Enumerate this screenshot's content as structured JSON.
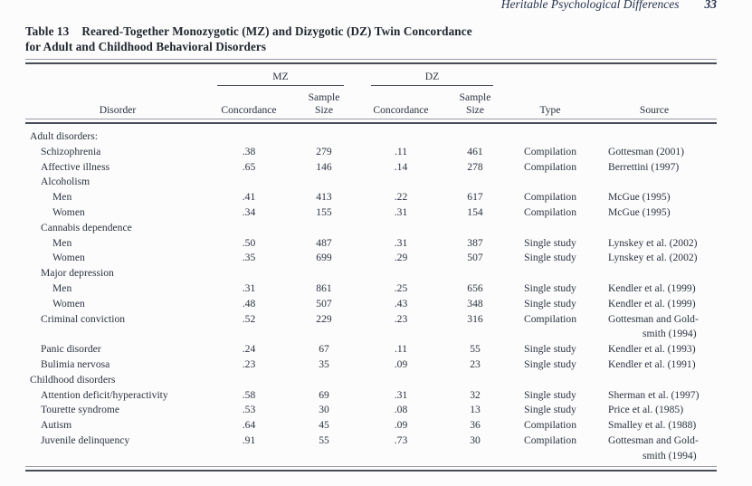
{
  "page": {
    "running_head": "Heritable Psychological Differences",
    "page_number": "33"
  },
  "table": {
    "label": "Table 13",
    "title_line1": "Reared-Together Monozygotic (MZ) and Dizygotic (DZ) Twin Concordance",
    "title_line2": "for Adult and Childhood Behavioral Disorders",
    "group_headers": {
      "mz": "MZ",
      "dz": "DZ"
    },
    "headers": {
      "disorder": "Disorder",
      "concordance_mz": "Concordance",
      "sample_line1_mz": "Sample",
      "sample_line2_mz": "Size",
      "concordance_dz": "Concordance",
      "sample_line1_dz": "Sample",
      "sample_line2_dz": "Size",
      "type": "Type",
      "source": "Source"
    },
    "rows": [
      {
        "label": "Adult disorders:",
        "indent": 0,
        "mz_concordance": "",
        "mz_sample": "",
        "dz_concordance": "",
        "dz_sample": "",
        "type": "",
        "source_lines": []
      },
      {
        "label": "Schizophrenia",
        "indent": 1,
        "mz_concordance": ".38",
        "mz_sample": "279",
        "dz_concordance": ".11",
        "dz_sample": "461",
        "type": "Compilation",
        "source_lines": [
          "Gottesman (2001)"
        ]
      },
      {
        "label": "Affective illness",
        "indent": 1,
        "mz_concordance": ".65",
        "mz_sample": "146",
        "dz_concordance": ".14",
        "dz_sample": "278",
        "type": "Compilation",
        "source_lines": [
          "Berrettini (1997)"
        ]
      },
      {
        "label": "Alcoholism",
        "indent": 1,
        "mz_concordance": "",
        "mz_sample": "",
        "dz_concordance": "",
        "dz_sample": "",
        "type": "",
        "source_lines": []
      },
      {
        "label": "Men",
        "indent": 2,
        "mz_concordance": ".41",
        "mz_sample": "413",
        "dz_concordance": ".22",
        "dz_sample": "617",
        "type": "Compilation",
        "source_lines": [
          "McGue (1995)"
        ]
      },
      {
        "label": "Women",
        "indent": 2,
        "mz_concordance": ".34",
        "mz_sample": "155",
        "dz_concordance": ".31",
        "dz_sample": "154",
        "type": "Compilation",
        "source_lines": [
          "McGue (1995)"
        ]
      },
      {
        "label": "Cannabis dependence",
        "indent": 1,
        "mz_concordance": "",
        "mz_sample": "",
        "dz_concordance": "",
        "dz_sample": "",
        "type": "",
        "source_lines": []
      },
      {
        "label": "Men",
        "indent": 2,
        "mz_concordance": ".50",
        "mz_sample": "487",
        "dz_concordance": ".31",
        "dz_sample": "387",
        "type": "Single study",
        "source_lines": [
          "Lynskey et al. (2002)"
        ]
      },
      {
        "label": "Women",
        "indent": 2,
        "mz_concordance": ".35",
        "mz_sample": "699",
        "dz_concordance": ".29",
        "dz_sample": "507",
        "type": "Single study",
        "source_lines": [
          "Lynskey et al. (2002)"
        ]
      },
      {
        "label": "Major depression",
        "indent": 1,
        "mz_concordance": "",
        "mz_sample": "",
        "dz_concordance": "",
        "dz_sample": "",
        "type": "",
        "source_lines": []
      },
      {
        "label": "Men",
        "indent": 2,
        "mz_concordance": ".31",
        "mz_sample": "861",
        "dz_concordance": ".25",
        "dz_sample": "656",
        "type": "Single study",
        "source_lines": [
          "Kendler et al. (1999)"
        ]
      },
      {
        "label": "Women",
        "indent": 2,
        "mz_concordance": ".48",
        "mz_sample": "507",
        "dz_concordance": ".43",
        "dz_sample": "348",
        "type": "Single study",
        "source_lines": [
          "Kendler et al. (1999)"
        ]
      },
      {
        "label": "Criminal conviction",
        "indent": 1,
        "mz_concordance": ".52",
        "mz_sample": "229",
        "dz_concordance": ".23",
        "dz_sample": "316",
        "type": "Compilation",
        "source_lines": [
          "Gottesman and Gold-",
          "smith (1994)"
        ]
      },
      {
        "label": "Panic disorder",
        "indent": 1,
        "mz_concordance": ".24",
        "mz_sample": "67",
        "dz_concordance": ".11",
        "dz_sample": "55",
        "type": "Single study",
        "source_lines": [
          "Kendler et al. (1993)"
        ]
      },
      {
        "label": "Bulimia nervosa",
        "indent": 1,
        "mz_concordance": ".23",
        "mz_sample": "35",
        "dz_concordance": ".09",
        "dz_sample": "23",
        "type": "Single study",
        "source_lines": [
          "Kendler et al. (1991)"
        ]
      },
      {
        "label": "Childhood disorders",
        "indent": 0,
        "mz_concordance": "",
        "mz_sample": "",
        "dz_concordance": "",
        "dz_sample": "",
        "type": "",
        "source_lines": []
      },
      {
        "label": "Attention deficit/hyperactivity",
        "indent": 1,
        "mz_concordance": ".58",
        "mz_sample": "69",
        "dz_concordance": ".31",
        "dz_sample": "32",
        "type": "Single study",
        "source_lines": [
          "Sherman et al. (1997)"
        ]
      },
      {
        "label": "Tourette syndrome",
        "indent": 1,
        "mz_concordance": ".53",
        "mz_sample": "30",
        "dz_concordance": ".08",
        "dz_sample": "13",
        "type": "Single study",
        "source_lines": [
          "Price et al. (1985)"
        ]
      },
      {
        "label": "Autism",
        "indent": 1,
        "mz_concordance": ".64",
        "mz_sample": "45",
        "dz_concordance": ".09",
        "dz_sample": "36",
        "type": "Compilation",
        "source_lines": [
          "Smalley et al. (1988)"
        ]
      },
      {
        "label": "Juvenile delinquency",
        "indent": 1,
        "mz_concordance": ".91",
        "mz_sample": "55",
        "dz_concordance": ".73",
        "dz_sample": "30",
        "type": "Compilation",
        "source_lines": [
          "Gottesman and Gold-",
          "smith (1994)"
        ]
      }
    ]
  },
  "colors": {
    "page_background": "#fcfcfc",
    "text": "#2b3240",
    "running_head_text": "#27334e",
    "rule_dark": "#474d57",
    "rule_light": "#979ca4"
  }
}
